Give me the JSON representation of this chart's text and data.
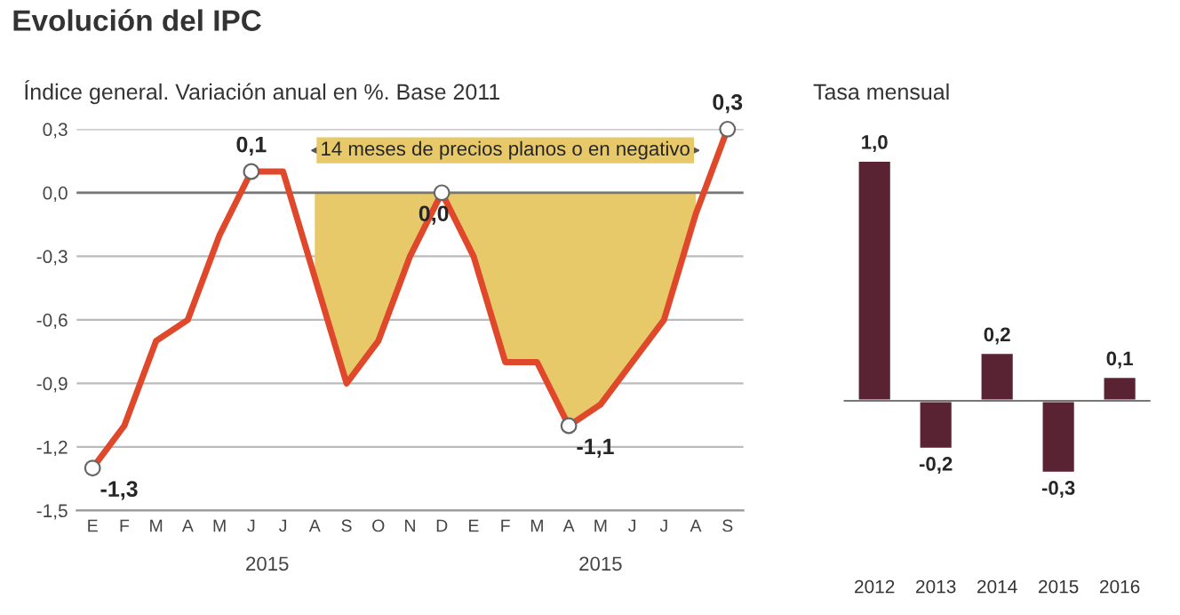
{
  "chart_data": [
    {
      "type": "line",
      "title": "Evolución del IPC",
      "subtitle": "Índice general. Variación anual en %. Base 2011",
      "categories": [
        "E",
        "F",
        "M",
        "A",
        "M",
        "J",
        "J",
        "A",
        "S",
        "O",
        "N",
        "D",
        "E",
        "F",
        "M",
        "A",
        "M",
        "J",
        "J",
        "A",
        "S"
      ],
      "series": [
        {
          "type": "area",
          "color": "#e8c96a",
          "values": [
            null,
            null,
            null,
            null,
            null,
            null,
            null,
            -0.4,
            -0.9,
            -0.7,
            -0.3,
            0.0,
            -0.3,
            -0.8,
            -0.8,
            -1.1,
            -1.0,
            -0.8,
            -0.6,
            -0.1,
            null
          ]
        },
        {
          "type": "line",
          "color": "#e0482b",
          "values": [
            -1.3,
            -1.1,
            -0.7,
            -0.6,
            -0.2,
            0.1,
            0.1,
            -0.4,
            -0.9,
            -0.7,
            -0.3,
            0.0,
            -0.3,
            -0.8,
            -0.8,
            -1.1,
            -1.0,
            -0.8,
            -0.6,
            -0.1,
            0.3
          ],
          "value_labels": [
            "-1,3",
            null,
            null,
            null,
            null,
            "0,1",
            null,
            null,
            null,
            null,
            null,
            "0,0",
            null,
            null,
            null,
            "-1,1",
            null,
            null,
            null,
            null,
            "0,3"
          ]
        }
      ],
      "ylim": [
        -1.5,
        0.3
      ],
      "yticks": [
        {
          "value": -1.5,
          "label": "-1,5"
        },
        {
          "value": -1.2,
          "label": "-1,2"
        },
        {
          "value": -0.9,
          "label": "-0,9"
        },
        {
          "value": -0.6,
          "label": "-0,6"
        },
        {
          "value": -0.3,
          "label": "-0,3"
        },
        {
          "value": 0.0,
          "label": "0,0"
        },
        {
          "value": 0.3,
          "label": "0,3"
        }
      ],
      "grid": "y",
      "line_style": "solid",
      "annotations": [
        "14 meses de precios planos o en negativo",
        "2015",
        "2015"
      ]
    },
    {
      "type": "bar",
      "title": "Tasa mensual",
      "categories": [
        "2012",
        "2013",
        "2014",
        "2015",
        "2016"
      ],
      "values": [
        1.0,
        -0.2,
        0.2,
        -0.3,
        0.1
      ],
      "color": "#5a2333",
      "value_labels": [
        "1,0",
        "-0,2",
        "0,2",
        "-0,3",
        "0,1"
      ]
    }
  ]
}
